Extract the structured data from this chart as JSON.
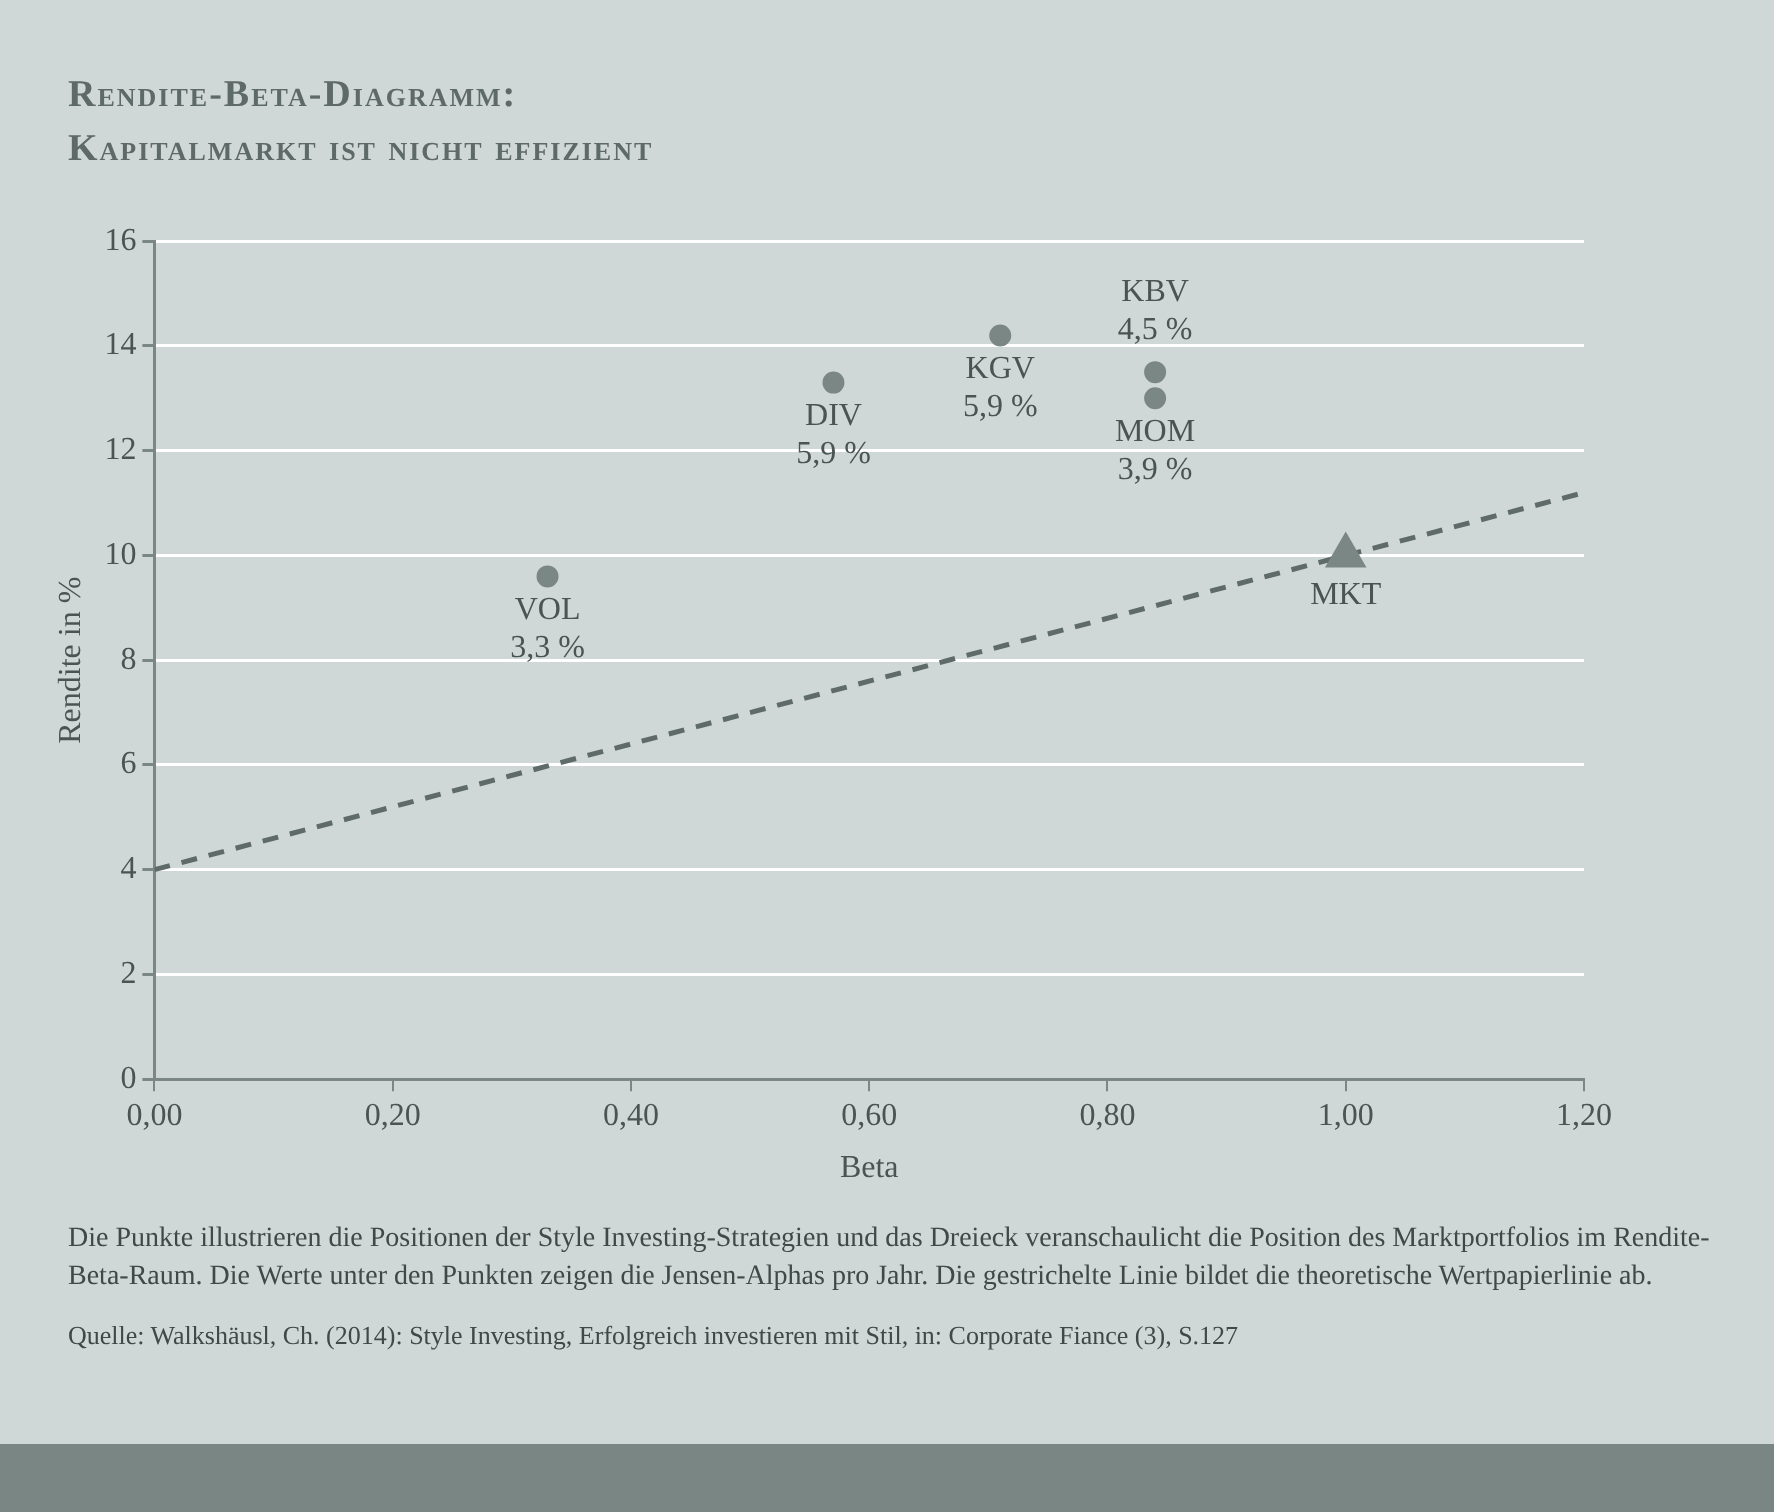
{
  "chart_data": {
    "type": "scatter",
    "title": "Rendite-Beta-Diagramm:",
    "subtitle": "Kapitalmarkt ist nicht effizient",
    "xlabel": "Beta",
    "ylabel": "Rendite in %",
    "xlim": [
      0,
      1.2
    ],
    "xticks": [
      {
        "value": 0,
        "label": "0,00"
      },
      {
        "value": 0.2,
        "label": "0,20"
      },
      {
        "value": 0.4,
        "label": "0,40"
      },
      {
        "value": 0.6,
        "label": "0,60"
      },
      {
        "value": 0.8,
        "label": "0,80"
      },
      {
        "value": 1,
        "label": "1,00"
      },
      {
        "value": 1.2,
        "label": "1,20"
      }
    ],
    "ylim": [
      0,
      16
    ],
    "yticks": [
      0,
      2,
      4,
      6,
      8,
      10,
      12,
      14,
      16
    ],
    "grid": "y",
    "legend": false,
    "series": [
      {
        "name": "VOL",
        "type": "scatter",
        "marker": "circle",
        "color": "#7b8784",
        "x": [
          0.33
        ],
        "values": [
          9.6
        ]
      },
      {
        "name": "DIV",
        "type": "scatter",
        "marker": "circle",
        "color": "#7b8784",
        "x": [
          0.57
        ],
        "values": [
          13.3
        ]
      },
      {
        "name": "KGV",
        "type": "scatter",
        "marker": "circle",
        "color": "#7b8784",
        "x": [
          0.71
        ],
        "values": [
          14.2
        ]
      },
      {
        "name": "KBV",
        "type": "scatter",
        "marker": "circle",
        "color": "#7b8784",
        "x": [
          0.84
        ],
        "values": [
          13.5
        ]
      },
      {
        "name": "MOM",
        "type": "scatter",
        "marker": "circle",
        "color": "#7b8784",
        "x": [
          0.84
        ],
        "values": [
          13.0
        ]
      },
      {
        "name": "MKT",
        "type": "scatter",
        "marker": "triangle",
        "color": "#7b8784",
        "x": [
          1.0
        ],
        "values": [
          10.0
        ]
      },
      {
        "type": "line",
        "marker": "none",
        "line_style": "dashed",
        "color": "#5f6b68",
        "x": [
          0,
          1.2
        ],
        "values": [
          4,
          11.2
        ]
      }
    ],
    "annotations": [
      {
        "text": "3,3 %",
        "x": 0.33,
        "y": 9.6
      },
      {
        "text": "5,9 %",
        "x": 0.57,
        "y": 13.3
      },
      {
        "text": "5,9 %",
        "x": 0.71,
        "y": 14.2
      },
      {
        "text": "4,5 %",
        "x": 0.84,
        "y": 13.5
      },
      {
        "text": "3,9 %",
        "x": 0.84,
        "y": 13.0
      },
      "Die Punkte illustrieren die Positionen der Style Investing-Strategien und das Dreieck veranschaulicht die Position des Marktportfolios im Rendite-Beta-Raum. Die Werte unter den Punkten zeigen die Jensen-Alphas pro Jahr. Die gestrichelte Linie bildet die theoretische Wertpapierlinie ab.",
      "Quelle: Walkshäusl, Ch. (2014): Style Investing, Erfolgreich investieren mit Stil, in: Corporate Fiance (3), S.127"
    ]
  }
}
